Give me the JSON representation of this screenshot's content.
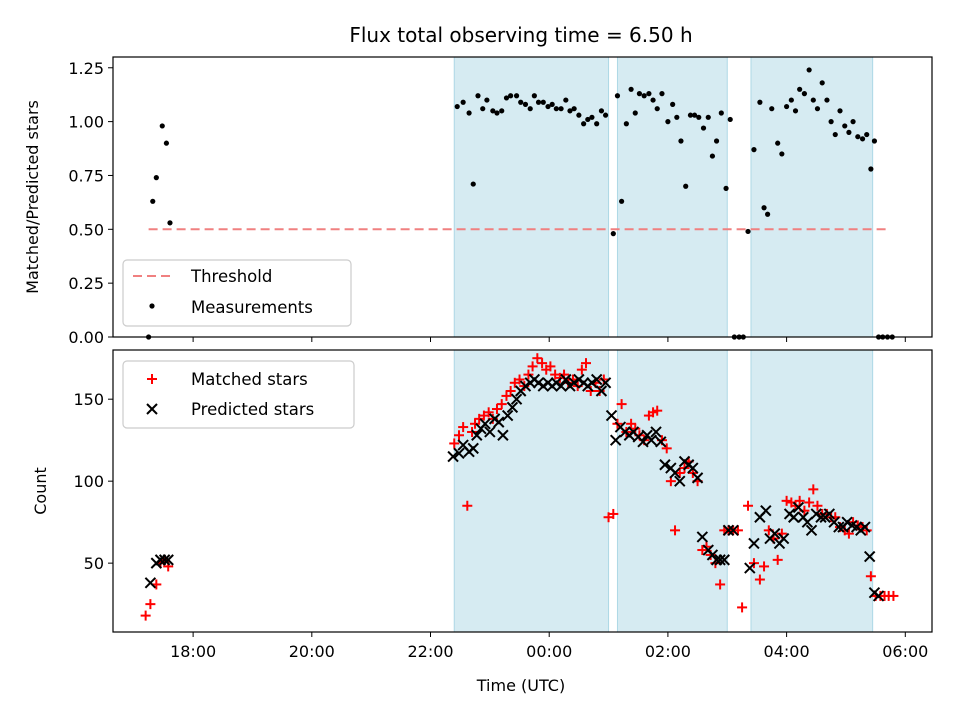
{
  "colors": {
    "span": "#add8e6",
    "threshold": "#f08080",
    "measurement": "#000000",
    "matched": "#ff0000",
    "predicted": "#000000"
  },
  "chart_data": {
    "title": "Flux total observing time = 6.50 h",
    "xlabel": "Time (UTC)",
    "x_units": "hours after 00:00 UTC (negative = previous day)",
    "xlim": [
      -7.35,
      6.45
    ],
    "x_ticks": [
      {
        "value": -6,
        "label": "18:00"
      },
      {
        "value": -4,
        "label": "20:00"
      },
      {
        "value": -2,
        "label": "22:00"
      },
      {
        "value": 0,
        "label": "00:00"
      },
      {
        "value": 2,
        "label": "02:00"
      },
      {
        "value": 4,
        "label": "04:00"
      },
      {
        "value": 6,
        "label": "06:00"
      }
    ],
    "highlight_spans": [
      [
        -1.6,
        1.0
      ],
      [
        1.15,
        3.0
      ],
      [
        3.4,
        5.45
      ]
    ],
    "panels": [
      {
        "type": "scatter",
        "ylabel": "Matched/Predicted stars",
        "ylim": [
          0,
          1.3
        ],
        "y_ticks": [
          "0.00",
          "0.25",
          "0.50",
          "0.75",
          "1.00",
          "1.25"
        ],
        "legend_position": "lower-left",
        "threshold": {
          "name": "Threshold",
          "value": 0.5,
          "x_range": [
            -6.75,
            5.75
          ]
        },
        "series": [
          {
            "name": "Measurements",
            "x": [
              -6.75,
              -6.68,
              -6.62,
              -6.52,
              -6.45,
              -6.39,
              -1.55,
              -1.45,
              -1.35,
              -1.28,
              -1.2,
              -1.12,
              -1.05,
              -0.95,
              -0.88,
              -0.8,
              -0.72,
              -0.65,
              -0.55,
              -0.48,
              -0.4,
              -0.32,
              -0.25,
              -0.18,
              -0.1,
              -0.02,
              0.05,
              0.12,
              0.2,
              0.28,
              0.35,
              0.42,
              0.5,
              0.58,
              0.65,
              0.72,
              0.8,
              0.88,
              0.95,
              1.08,
              1.15,
              1.22,
              1.3,
              1.38,
              1.45,
              1.52,
              1.6,
              1.68,
              1.75,
              1.82,
              1.9,
              2.0,
              2.08,
              2.15,
              2.22,
              2.3,
              2.38,
              2.45,
              2.52,
              2.6,
              2.68,
              2.75,
              2.82,
              2.9,
              2.98,
              3.05,
              3.12,
              3.2,
              3.27,
              3.35,
              3.45,
              3.55,
              3.62,
              3.68,
              3.75,
              3.85,
              3.92,
              4.0,
              4.08,
              4.15,
              4.22,
              4.3,
              4.38,
              4.45,
              4.52,
              4.6,
              4.68,
              4.75,
              4.82,
              4.9,
              4.98,
              5.05,
              5.12,
              5.2,
              5.28,
              5.35,
              5.42,
              5.48,
              5.55,
              5.62,
              5.7,
              5.78
            ],
            "y": [
              0.0,
              0.63,
              0.74,
              0.98,
              0.9,
              0.53,
              1.07,
              1.09,
              1.04,
              0.71,
              1.12,
              1.06,
              1.1,
              1.05,
              1.04,
              1.05,
              1.11,
              1.12,
              1.12,
              1.09,
              1.08,
              1.06,
              1.12,
              1.09,
              1.09,
              1.07,
              1.08,
              1.06,
              1.06,
              1.1,
              1.05,
              1.06,
              1.03,
              0.99,
              1.01,
              1.02,
              0.99,
              1.05,
              1.03,
              0.48,
              1.12,
              0.63,
              0.99,
              1.15,
              1.04,
              1.13,
              1.12,
              1.13,
              1.1,
              1.06,
              1.13,
              1.0,
              1.08,
              1.02,
              0.91,
              0.7,
              1.03,
              1.03,
              1.02,
              0.97,
              1.02,
              0.84,
              0.91,
              1.04,
              0.69,
              1.01,
              0.0,
              0.0,
              0.0,
              0.49,
              0.87,
              1.09,
              0.6,
              0.57,
              1.06,
              0.9,
              0.85,
              1.07,
              1.1,
              1.05,
              1.15,
              1.13,
              1.24,
              1.1,
              1.06,
              1.18,
              1.1,
              1.0,
              0.94,
              1.05,
              0.98,
              0.95,
              1.0,
              0.93,
              0.92,
              0.94,
              0.78,
              0.91,
              0.0,
              0.0,
              0.0,
              0.0
            ]
          }
        ]
      },
      {
        "type": "scatter",
        "ylabel": "Count",
        "ylim": [
          8,
          180
        ],
        "y_ticks": [
          "50",
          "100",
          "150"
        ],
        "legend_position": "upper-left",
        "series": [
          {
            "name": "Matched stars",
            "marker": "+",
            "x": [
              -6.8,
              -6.72,
              -6.62,
              -6.55,
              -6.48,
              -6.42,
              -1.6,
              -1.52,
              -1.45,
              -1.38,
              -1.3,
              -1.25,
              -1.18,
              -1.1,
              -1.02,
              -0.95,
              -0.88,
              -0.8,
              -0.72,
              -0.65,
              -0.58,
              -0.5,
              -0.42,
              -0.35,
              -0.28,
              -0.2,
              -0.12,
              -0.05,
              0.02,
              0.1,
              0.18,
              0.25,
              0.32,
              0.4,
              0.48,
              0.55,
              0.62,
              0.7,
              0.78,
              0.85,
              0.92,
              1.0,
              1.08,
              1.15,
              1.22,
              1.3,
              1.38,
              1.45,
              1.52,
              1.6,
              1.68,
              1.75,
              1.82,
              1.9,
              1.98,
              2.05,
              2.12,
              2.2,
              2.28,
              2.35,
              2.42,
              2.5,
              2.58,
              2.65,
              2.72,
              2.8,
              2.88,
              2.95,
              3.02,
              3.1,
              3.18,
              3.25,
              3.35,
              3.45,
              3.55,
              3.62,
              3.7,
              3.78,
              3.85,
              3.92,
              4.0,
              4.08,
              4.15,
              4.22,
              4.3,
              4.38,
              4.45,
              4.52,
              4.6,
              4.68,
              4.75,
              4.82,
              4.9,
              4.98,
              5.05,
              5.12,
              5.2,
              5.28,
              5.35,
              5.42,
              5.5,
              5.58,
              5.65,
              5.72,
              5.8
            ],
            "y": [
              18,
              25,
              37,
              50,
              52,
              48,
              123,
              128,
              133,
              85,
              130,
              135,
              138,
              140,
              142,
              138,
              144,
              147,
              152,
              155,
              160,
              162,
              158,
              165,
              170,
              175,
              172,
              168,
              170,
              165,
              163,
              165,
              160,
              162,
              158,
              168,
              172,
              155,
              160,
              155,
              162,
              78,
              80,
              135,
              147,
              130,
              135,
              132,
              128,
              125,
              140,
              142,
              143,
              125,
              120,
              100,
              70,
              105,
              108,
              112,
              105,
              100,
              58,
              60,
              55,
              50,
              37,
              70,
              70,
              70,
              70,
              23,
              85,
              50,
              40,
              48,
              70,
              65,
              52,
              68,
              88,
              87,
              85,
              88,
              82,
              87,
              95,
              85,
              80,
              80,
              78,
              78,
              72,
              70,
              68,
              75,
              73,
              72,
              70,
              42,
              30,
              30,
              30,
              30,
              30
            ],
            "note": "approximate readings"
          },
          {
            "name": "Predicted stars",
            "marker": "x",
            "x": [
              -6.72,
              -6.62,
              -6.55,
              -6.48,
              -6.42,
              -1.62,
              -1.52,
              -1.45,
              -1.35,
              -1.28,
              -1.22,
              -1.15,
              -1.08,
              -1.0,
              -0.92,
              -0.85,
              -0.78,
              -0.7,
              -0.62,
              -0.55,
              -0.48,
              -0.4,
              -0.32,
              -0.25,
              -0.18,
              -0.1,
              -0.02,
              0.05,
              0.12,
              0.2,
              0.28,
              0.35,
              0.42,
              0.5,
              0.58,
              0.65,
              0.72,
              0.8,
              0.88,
              0.95,
              1.05,
              1.12,
              1.2,
              1.28,
              1.35,
              1.42,
              1.5,
              1.58,
              1.65,
              1.72,
              1.8,
              1.88,
              1.95,
              2.05,
              2.12,
              2.2,
              2.28,
              2.35,
              2.42,
              2.5,
              2.58,
              2.68,
              2.75,
              2.82,
              2.88,
              2.95,
              3.02,
              3.1,
              3.38,
              3.45,
              3.55,
              3.65,
              3.72,
              3.8,
              3.88,
              3.95,
              4.05,
              4.12,
              4.2,
              4.28,
              4.35,
              4.42,
              4.5,
              4.58,
              4.65,
              4.72,
              4.8,
              4.88,
              4.95,
              5.02,
              5.1,
              5.18,
              5.25,
              5.32,
              5.4,
              5.48,
              5.55
            ],
            "y": [
              38,
              50,
              52,
              52,
              52,
              115,
              117,
              122,
              118,
              120,
              128,
              132,
              135,
              130,
              138,
              136,
              128,
              140,
              145,
              150,
              155,
              158,
              160,
              162,
              160,
              158,
              160,
              158,
              160,
              158,
              162,
              158,
              160,
              162,
              160,
              158,
              160,
              162,
              155,
              160,
              140,
              125,
              133,
              130,
              128,
              130,
              127,
              124,
              128,
              125,
              130,
              124,
              110,
              108,
              105,
              100,
              112,
              110,
              108,
              102,
              66,
              58,
              55,
              52,
              52,
              52,
              70,
              70,
              47,
              62,
              78,
              82,
              65,
              68,
              62,
              65,
              80,
              78,
              84,
              78,
              75,
              70,
              80,
              78,
              78,
              80,
              75,
              72,
              72,
              75,
              73,
              72,
              70,
              72,
              54,
              32,
              30
            ],
            "note": "approximate readings"
          }
        ]
      }
    ]
  }
}
